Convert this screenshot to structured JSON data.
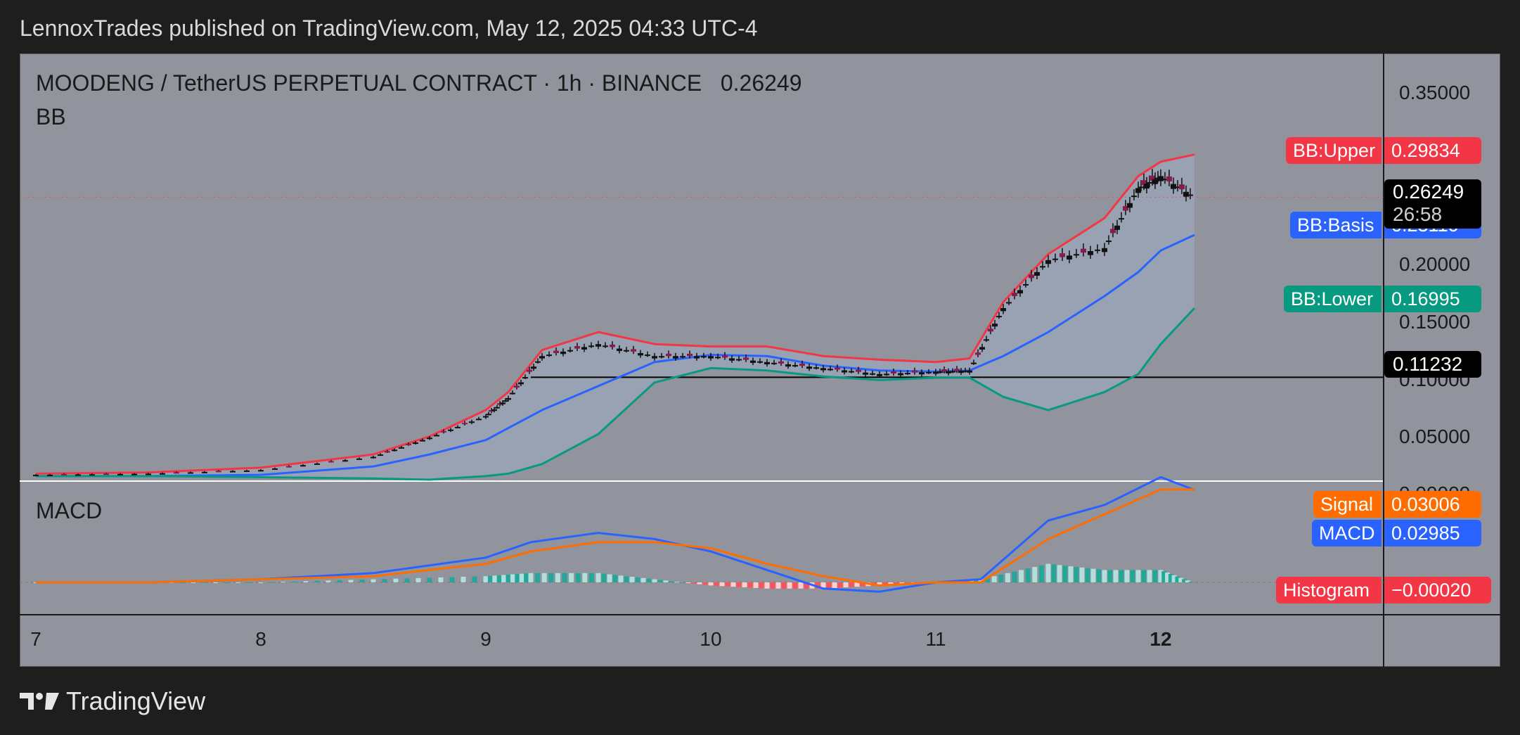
{
  "header": {
    "published_line": "LennoxTrades published on TradingView.com, May 12, 2025 04:33 UTC-4"
  },
  "symbol": {
    "line": "MOODENG / TetherUS PERPETUAL CONTRACT · 1h · BINANCE",
    "last": "0.26249"
  },
  "indicators": {
    "bb_label": "BB",
    "macd_label": "MACD"
  },
  "price_axis": [
    "0.35000",
    "0.20000",
    "0.15000",
    "0.10000",
    "0.05000",
    "0.00000"
  ],
  "time_axis": [
    "7",
    "8",
    "9",
    "10",
    "11",
    "12"
  ],
  "tags": {
    "bb_upper": {
      "name": "BB:Upper",
      "value": "0.29834",
      "color": "#f23645"
    },
    "bb_basis": {
      "name": "BB:Basis",
      "value": "0.23110",
      "color": "#2962ff"
    },
    "bb_lower": {
      "name": "BB:Lower",
      "value": "0.16995",
      "color": "#089981"
    },
    "last_price": {
      "value": "0.26249",
      "countdown": "26:58"
    },
    "support_level": {
      "value": "0.11232"
    },
    "signal": {
      "name": "Signal",
      "value": "0.03006",
      "color": "#ff6d00"
    },
    "macd": {
      "name": "MACD",
      "value": "0.02985",
      "color": "#2962ff"
    },
    "histogram": {
      "name": "Histogram",
      "value": "−0.00020",
      "color": "#f23645"
    }
  },
  "footer": {
    "brand": "TradingView"
  },
  "chart_data": {
    "type": "line",
    "x": [
      7,
      7.5,
      8,
      8.5,
      8.75,
      9,
      9.1,
      9.25,
      9.5,
      9.75,
      10,
      10.25,
      10.5,
      10.75,
      11,
      11.15,
      11.3,
      11.5,
      11.75,
      11.9,
      12,
      12.15
    ],
    "xlabel": "",
    "ylabel": "",
    "ylim": [
      0.0,
      0.37
    ],
    "series": [
      {
        "name": "BB:Upper",
        "color": "#f23645",
        "values": [
          0.032,
          0.033,
          0.037,
          0.048,
          0.063,
          0.085,
          0.1,
          0.135,
          0.15,
          0.14,
          0.138,
          0.138,
          0.13,
          0.127,
          0.125,
          0.128,
          0.175,
          0.215,
          0.245,
          0.28,
          0.292,
          0.298
        ]
      },
      {
        "name": "BB:Basis",
        "color": "#2962ff",
        "values": [
          0.03,
          0.03,
          0.031,
          0.038,
          0.048,
          0.06,
          0.07,
          0.085,
          0.105,
          0.125,
          0.131,
          0.13,
          0.122,
          0.118,
          0.117,
          0.118,
          0.13,
          0.15,
          0.18,
          0.2,
          0.218,
          0.231
        ]
      },
      {
        "name": "BB:Lower",
        "color": "#089981",
        "values": [
          0.03,
          0.03,
          0.029,
          0.028,
          0.027,
          0.03,
          0.032,
          0.04,
          0.065,
          0.108,
          0.12,
          0.118,
          0.113,
          0.11,
          0.112,
          0.112,
          0.096,
          0.085,
          0.1,
          0.115,
          0.14,
          0.17
        ]
      },
      {
        "name": "Price",
        "color": "#000000",
        "values": [
          0.031,
          0.032,
          0.035,
          0.046,
          0.062,
          0.08,
          0.095,
          0.13,
          0.14,
          0.13,
          0.13,
          0.125,
          0.12,
          0.115,
          0.117,
          0.118,
          0.17,
          0.21,
          0.22,
          0.27,
          0.28,
          0.26249
        ]
      }
    ],
    "macd": {
      "x": [
        7,
        7.5,
        8,
        8.5,
        9,
        9.2,
        9.5,
        9.75,
        10,
        10.25,
        10.5,
        10.75,
        11,
        11.2,
        11.5,
        11.75,
        12,
        12.15
      ],
      "macd": [
        0.0,
        0.0,
        0.001,
        0.003,
        0.008,
        0.013,
        0.016,
        0.014,
        0.01,
        0.004,
        -0.002,
        -0.003,
        0.0,
        0.001,
        0.02,
        0.025,
        0.034,
        0.02985
      ],
      "signal": [
        0.0,
        0.0,
        0.001,
        0.002,
        0.006,
        0.01,
        0.013,
        0.013,
        0.011,
        0.006,
        0.002,
        -0.001,
        0.0,
        0.0,
        0.014,
        0.022,
        0.03,
        0.03006
      ],
      "histogram": [
        0.0,
        0.0,
        0.0,
        0.001,
        0.002,
        0.003,
        0.003,
        0.001,
        -0.001,
        -0.002,
        -0.002,
        -0.001,
        0.0,
        0.001,
        0.006,
        0.004,
        0.004,
        -0.0002
      ]
    },
    "support_line": 0.11232,
    "grid": false
  }
}
